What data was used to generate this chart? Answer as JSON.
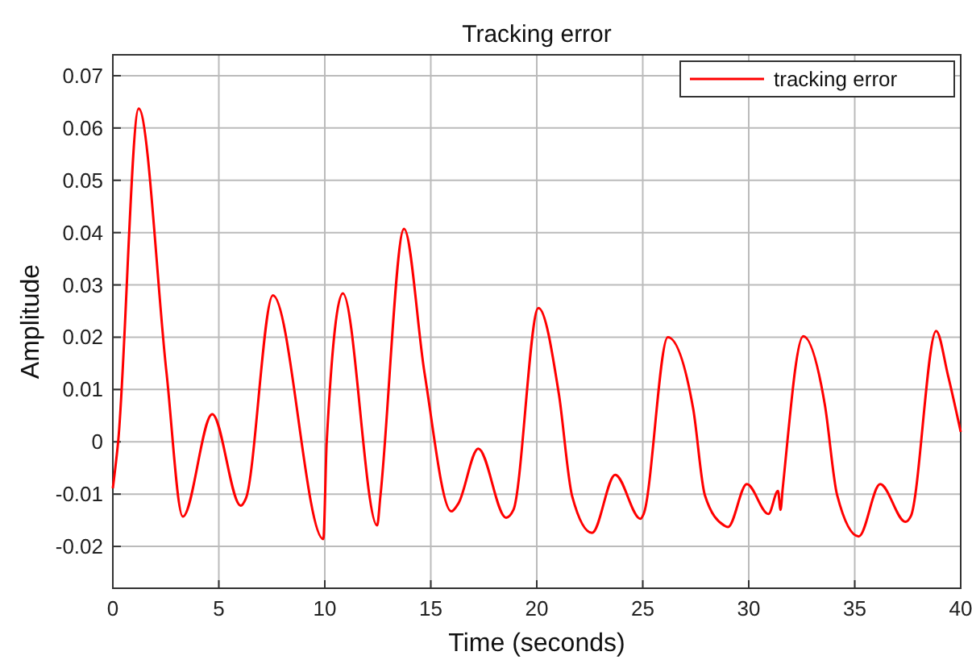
{
  "chart_data": {
    "type": "line",
    "title": "Tracking error",
    "xlabel": "Time (seconds)",
    "ylabel": "Amplitude",
    "xlim": [
      0,
      40
    ],
    "xticks": [
      0,
      5,
      10,
      15,
      20,
      25,
      30,
      35,
      40
    ],
    "ylim": [
      -0.028,
      0.074
    ],
    "yticks": [
      -0.02,
      -0.01,
      0,
      0.01,
      0.02,
      0.03,
      0.04,
      0.05,
      0.06,
      0.07
    ],
    "grid": true,
    "legend": "top right",
    "line_style": "solid",
    "marker": "none",
    "series": [
      {
        "name": "tracking error",
        "color": "#ff0000",
        "x": [
          0,
          0.25,
          1.22,
          2.53,
          3.3,
          4.69,
          6.03,
          6.28,
          7.55,
          9.93,
          10.09,
          10.85,
          12.47,
          12.62,
          13.74,
          14.7,
          15.97,
          16.3,
          17.24,
          18.55,
          18.9,
          20.08,
          21.04,
          21.67,
          22.61,
          23.7,
          24.89,
          25.04,
          26.18,
          27.38,
          27.93,
          28.84,
          29.02,
          29.91,
          30.93,
          31.38,
          31.5,
          31.6,
          32.57,
          33.59,
          34.17,
          35.19,
          36.2,
          37.39,
          37.65,
          38.84,
          39.4,
          40
        ],
        "values": [
          -0.0089,
          0,
          0.0637,
          0.0133,
          -0.0143,
          0.0053,
          -0.0122,
          -0.0108,
          0.028,
          -0.0186,
          0,
          0.0284,
          -0.016,
          -0.0105,
          0.0407,
          0.0133,
          -0.0133,
          -0.0118,
          -0.0013,
          -0.0145,
          -0.013,
          0.0256,
          0.0092,
          -0.0104,
          -0.0174,
          -0.0063,
          -0.0147,
          -0.0138,
          0.02,
          0.0063,
          -0.0102,
          -0.016,
          -0.0163,
          -0.0081,
          -0.0138,
          -0.0094,
          -0.013,
          -0.009,
          0.0202,
          0.0071,
          -0.0102,
          -0.0181,
          -0.0081,
          -0.0153,
          -0.0142,
          0.0212,
          0.0127,
          0.0019
        ]
      }
    ]
  }
}
